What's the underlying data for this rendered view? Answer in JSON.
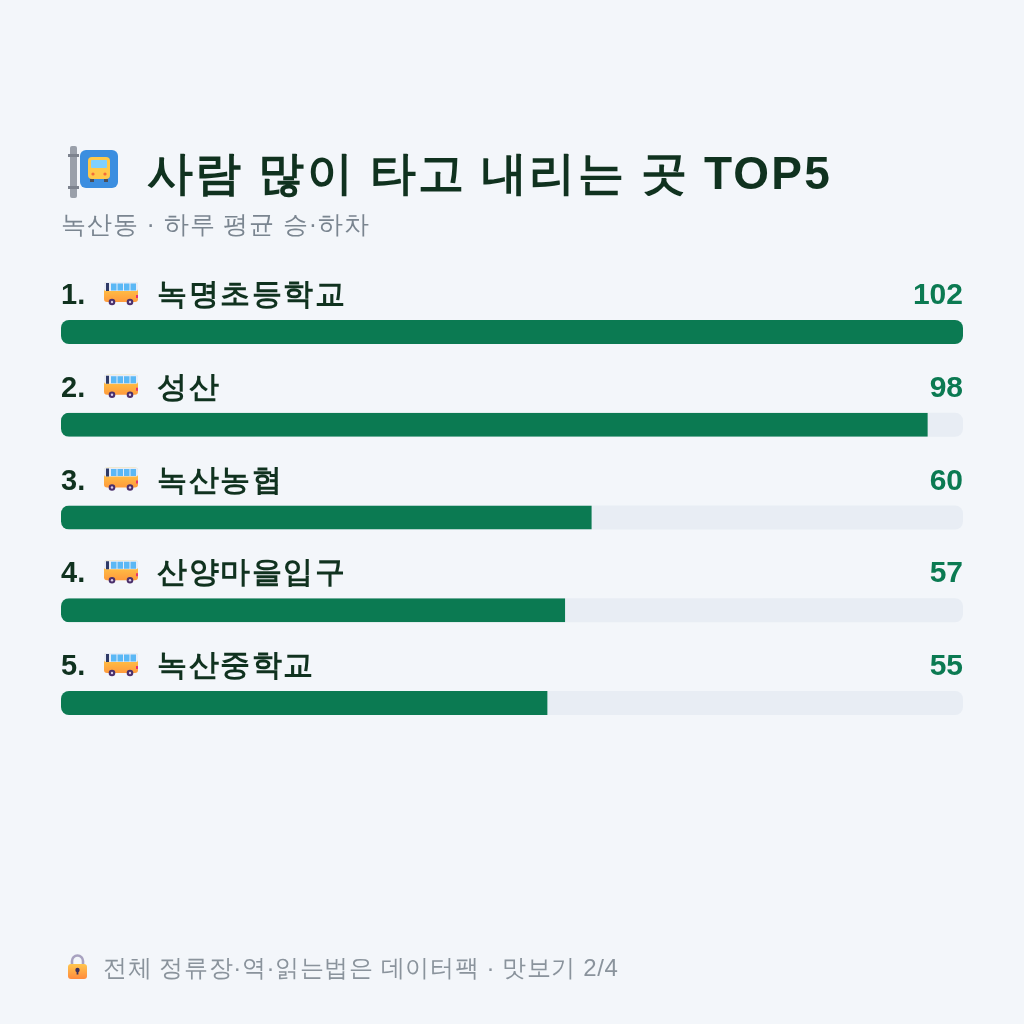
{
  "chart_data": {
    "type": "bar",
    "orientation": "horizontal",
    "title": "사람 많이 타고 내리는 곳 TOP5",
    "subtitle": "녹산동 · 하루 평균 승·하차",
    "categories": [
      "1. 녹명초등학교",
      "2. 성산",
      "3. 녹산농협",
      "4. 산양마을입구",
      "5. 녹산중학교"
    ],
    "values": [
      102,
      98,
      60,
      57,
      55
    ],
    "color": "#0b7a52",
    "xlim": [
      0,
      102
    ],
    "data_labels": true,
    "annotations": [
      "전체 정류장·역·읽는법은 데이터팩 · 맛보기 2/4"
    ]
  }
}
